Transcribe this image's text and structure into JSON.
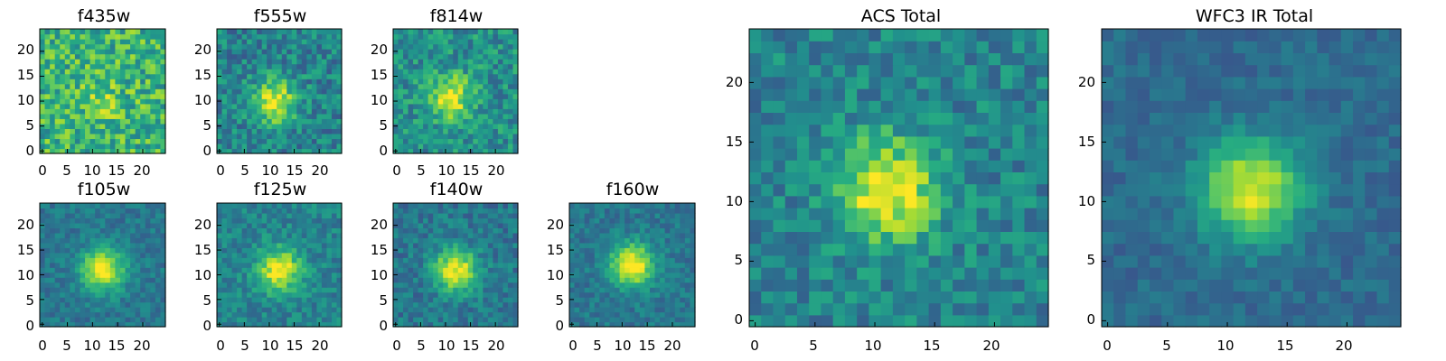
{
  "colormap": "viridis",
  "panels": [
    {
      "title": "f435w",
      "xticks": [
        "0",
        "5",
        "10",
        "15",
        "20"
      ],
      "yticks": [
        "0",
        "5",
        "10",
        "15",
        "20"
      ]
    },
    {
      "title": "f555w",
      "xticks": [
        "0",
        "5",
        "10",
        "15",
        "20"
      ],
      "yticks": [
        "0",
        "5",
        "10",
        "15",
        "20"
      ]
    },
    {
      "title": "f814w",
      "xticks": [
        "0",
        "5",
        "10",
        "15",
        "20"
      ],
      "yticks": [
        "0",
        "5",
        "10",
        "15",
        "20"
      ]
    },
    {
      "title": "f105w",
      "xticks": [
        "0",
        "5",
        "10",
        "15",
        "20"
      ],
      "yticks": [
        "0",
        "5",
        "10",
        "15",
        "20"
      ]
    },
    {
      "title": "f125w",
      "xticks": [
        "0",
        "5",
        "10",
        "15",
        "20"
      ],
      "yticks": [
        "0",
        "5",
        "10",
        "15",
        "20"
      ]
    },
    {
      "title": "f140w",
      "xticks": [
        "0",
        "5",
        "10",
        "15",
        "20"
      ],
      "yticks": [
        "0",
        "5",
        "10",
        "15",
        "20"
      ]
    },
    {
      "title": "f160w",
      "xticks": [
        "0",
        "5",
        "10",
        "15",
        "20"
      ],
      "yticks": [
        "0",
        "5",
        "10",
        "15",
        "20"
      ]
    },
    {
      "title": "ACS Total",
      "xticks": [
        "0",
        "5",
        "10",
        "15",
        "20"
      ],
      "yticks": [
        "0",
        "5",
        "10",
        "15",
        "20"
      ]
    },
    {
      "title": "WFC3 IR Total",
      "xticks": [
        "0",
        "5",
        "10",
        "15",
        "20"
      ],
      "yticks": [
        "0",
        "5",
        "10",
        "15",
        "20"
      ]
    }
  ],
  "chart_data": [
    {
      "type": "heatmap",
      "title": "f435w",
      "grid_size": 25,
      "xlim": [
        -0.5,
        24.5
      ],
      "ylim": [
        -0.5,
        24.5
      ],
      "source_center": [
        12,
        10
      ],
      "source_strength": 0.15,
      "noise": 0.45,
      "base": 0.65
    },
    {
      "type": "heatmap",
      "title": "f555w",
      "grid_size": 25,
      "xlim": [
        -0.5,
        24.5
      ],
      "ylim": [
        -0.5,
        24.5
      ],
      "source_center": [
        11,
        10
      ],
      "source_strength": 0.55,
      "noise": 0.35,
      "base": 0.45
    },
    {
      "type": "heatmap",
      "title": "f814w",
      "grid_size": 25,
      "xlim": [
        -0.5,
        24.5
      ],
      "ylim": [
        -0.5,
        24.5
      ],
      "source_center": [
        11,
        11
      ],
      "source_strength": 0.5,
      "noise": 0.35,
      "base": 0.5
    },
    {
      "type": "heatmap",
      "title": "f105w",
      "grid_size": 25,
      "xlim": [
        -0.5,
        24.5
      ],
      "ylim": [
        -0.5,
        24.5
      ],
      "source_center": [
        12,
        11
      ],
      "source_strength": 0.6,
      "noise": 0.2,
      "base": 0.4
    },
    {
      "type": "heatmap",
      "title": "f125w",
      "grid_size": 25,
      "xlim": [
        -0.5,
        24.5
      ],
      "ylim": [
        -0.5,
        24.5
      ],
      "source_center": [
        12,
        11
      ],
      "source_strength": 0.55,
      "noise": 0.25,
      "base": 0.45
    },
    {
      "type": "heatmap",
      "title": "f140w",
      "grid_size": 25,
      "xlim": [
        -0.5,
        24.5
      ],
      "ylim": [
        -0.5,
        24.5
      ],
      "source_center": [
        12,
        11
      ],
      "source_strength": 0.6,
      "noise": 0.25,
      "base": 0.4
    },
    {
      "type": "heatmap",
      "title": "f160w",
      "grid_size": 25,
      "xlim": [
        -0.5,
        24.5
      ],
      "ylim": [
        -0.5,
        24.5
      ],
      "source_center": [
        12,
        12
      ],
      "source_strength": 0.65,
      "noise": 0.2,
      "base": 0.4
    },
    {
      "type": "heatmap",
      "title": "ACS Total",
      "grid_size": 25,
      "xlim": [
        -0.5,
        24.5
      ],
      "ylim": [
        -0.5,
        24.5
      ],
      "source_center": [
        11,
        11
      ],
      "source_strength": 0.55,
      "noise": 0.3,
      "base": 0.45
    },
    {
      "type": "heatmap",
      "title": "WFC3 IR Total",
      "grid_size": 25,
      "xlim": [
        -0.5,
        24.5
      ],
      "ylim": [
        -0.5,
        24.5
      ],
      "source_center": [
        12,
        11
      ],
      "source_strength": 0.6,
      "noise": 0.15,
      "base": 0.35
    }
  ]
}
